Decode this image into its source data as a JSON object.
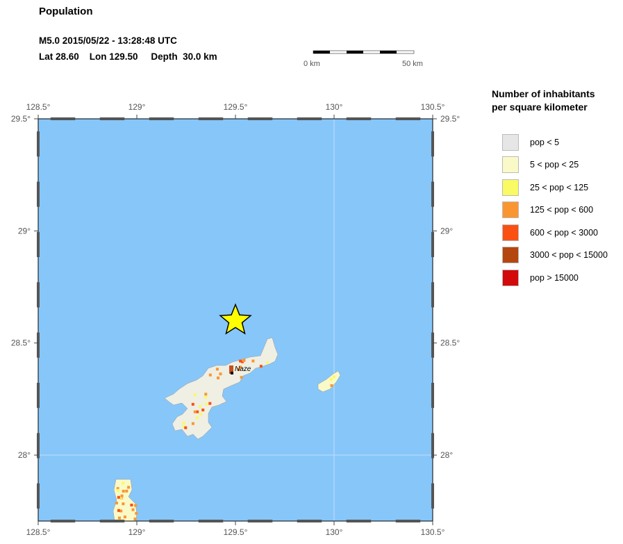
{
  "header": {
    "title": "Population",
    "event_line": "M5.0  2015/05/22 - 13:28:48 UTC",
    "location_line": "Lat 28.60    Lon 129.50     Depth  30.0 km"
  },
  "scale_bar": {
    "left_label": "0 km",
    "right_label": "50 km"
  },
  "map": {
    "lon_ticks": [
      "128.5°",
      "129°",
      "129.5°",
      "130°",
      "130.5°"
    ],
    "lat_ticks": [
      "29.5°",
      "29°",
      "28.5°",
      "28°"
    ],
    "epicenter": {
      "lat": 28.6,
      "lon": 129.5
    },
    "city_label": "Naze",
    "colors": {
      "ocean": "#87c6f9",
      "land": "#efefe4",
      "star": "#ffff00"
    }
  },
  "legend": {
    "title_line1": "Number of inhabitants",
    "title_line2": "per square kilometer",
    "items": [
      {
        "label": "pop < 5",
        "color": "#e6e6e6"
      },
      {
        "label": "5 < pop < 25",
        "color": "#fafac8"
      },
      {
        "label": "25 < pop < 125",
        "color": "#fafa64"
      },
      {
        "label": "125 < pop < 600",
        "color": "#fa9632"
      },
      {
        "label": "600 < pop < 3000",
        "color": "#fa5014"
      },
      {
        "label": "3000 < pop < 15000",
        "color": "#b4460f"
      },
      {
        "label": "pop > 15000",
        "color": "#d20a0a"
      }
    ]
  }
}
